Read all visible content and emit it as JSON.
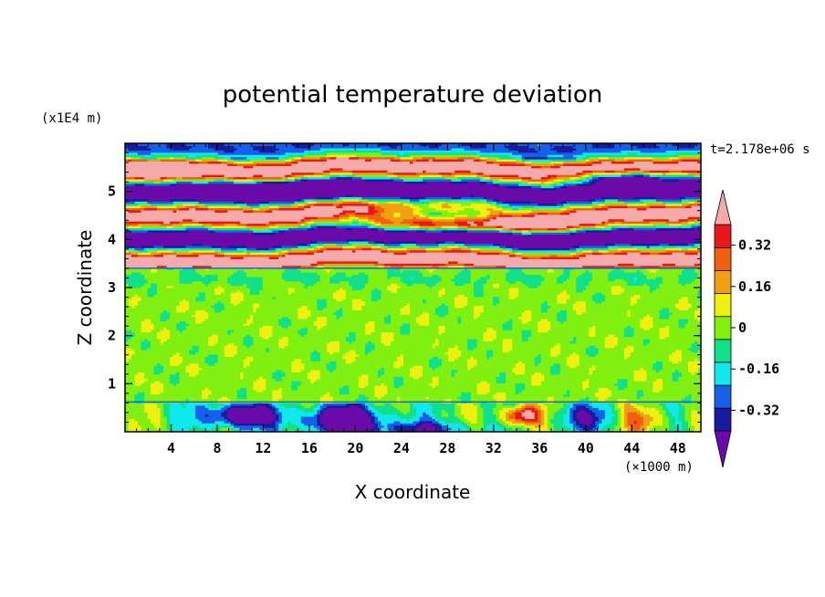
{
  "chart_data": {
    "type": "heatmap",
    "title": "potential temperature deviation",
    "xlabel": "X coordinate",
    "ylabel": "Z coordinate",
    "x_unit": "(×1000 m)",
    "y_unit": "(x1E4 m)",
    "time_label": "t=2.178e+06 s",
    "xlim": [
      0,
      50
    ],
    "ylim": [
      0,
      6
    ],
    "x_ticks": [
      4,
      8,
      12,
      16,
      20,
      24,
      28,
      32,
      36,
      40,
      44,
      48
    ],
    "y_ticks": [
      1,
      2,
      3,
      4,
      5
    ],
    "colorbar": {
      "tick_values": [
        0.32,
        0.16,
        0,
        -0.16,
        -0.32
      ],
      "tick_labels": [
        "0.32",
        "0.16",
        "0",
        "-0.16",
        "-0.32"
      ],
      "levels": [
        -0.4,
        -0.32,
        -0.24,
        -0.16,
        -0.08,
        0,
        0.08,
        0.16,
        0.24,
        0.32,
        0.4
      ],
      "colors": [
        "#6a0aa8",
        "#1a1a9c",
        "#1560e8",
        "#10e8f0",
        "#10e08a",
        "#80f010",
        "#f0f010",
        "#f0a010",
        "#f06010",
        "#e81818",
        "#f4aaaa"
      ],
      "extend": "both"
    },
    "bands": [
      {
        "z": [
          3.4,
          5.9
        ],
        "pattern": "alternating strong anomalies ±0.4"
      },
      {
        "z": [
          0.6,
          3.4
        ],
        "pattern": "near zero"
      },
      {
        "z": [
          0,
          0.6
        ],
        "pattern": "mixed anomalies near surface"
      }
    ]
  }
}
